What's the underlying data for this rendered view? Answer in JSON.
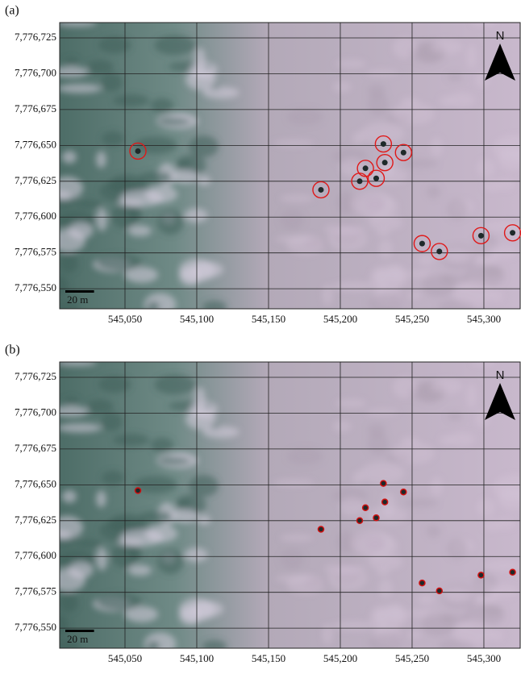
{
  "panels": [
    {
      "label": "(a)"
    },
    {
      "label": "(b)"
    }
  ],
  "map": {
    "xlim": [
      545004.5,
      545325.3
    ],
    "ylim": [
      7776536,
      7776735.7
    ],
    "xticks": [
      {
        "value": 545050,
        "label": "545,050"
      },
      {
        "value": 545100,
        "label": "545,100"
      },
      {
        "value": 545150,
        "label": "545,150"
      },
      {
        "value": 545200,
        "label": "545,200"
      },
      {
        "value": 545250,
        "label": "545,250"
      },
      {
        "value": 545300,
        "label": "545,300"
      }
    ],
    "yticks": [
      {
        "value": 7776725,
        "label": "7,776,725"
      },
      {
        "value": 7776700,
        "label": "7,776,700"
      },
      {
        "value": 7776675,
        "label": "7,776,675"
      },
      {
        "value": 7776650,
        "label": "7,776,650"
      },
      {
        "value": 7776625,
        "label": "7,776,625"
      },
      {
        "value": 7776600,
        "label": "7,776,600"
      },
      {
        "value": 7776575,
        "label": "7,776,575"
      },
      {
        "value": 7776550,
        "label": "7,776,550"
      }
    ],
    "north_label": "N",
    "scale_bar_m": 20,
    "scale_label": "20 m",
    "features": [
      {
        "x": 545059,
        "y": 7776646
      },
      {
        "x": 545186.5,
        "y": 7776619
      },
      {
        "x": 545213.5,
        "y": 7776625
      },
      {
        "x": 545217.5,
        "y": 7776634
      },
      {
        "x": 545225,
        "y": 7776627
      },
      {
        "x": 545230,
        "y": 7776651
      },
      {
        "x": 545231,
        "y": 7776638
      },
      {
        "x": 545244,
        "y": 7776645
      },
      {
        "x": 545257,
        "y": 7776581.5
      },
      {
        "x": 545269,
        "y": 7776576
      },
      {
        "x": 545298,
        "y": 7776587
      },
      {
        "x": 545320,
        "y": 7776589
      }
    ]
  }
}
